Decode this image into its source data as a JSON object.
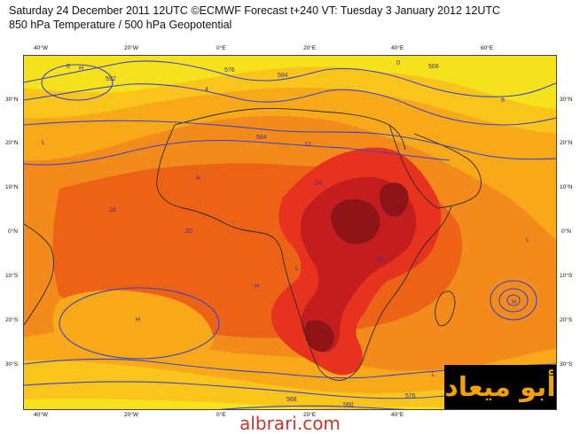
{
  "header": {
    "line1": "Saturday 24 December 2011 12UTC ©ECMWF Forecast t+240 VT: Tuesday 3 January 2012 12UTC",
    "line2": "850 hPa Temperature / 500 hPa Geopotential"
  },
  "axes": {
    "lon_labels": [
      "40°W",
      "20°W",
      "0°E",
      "20°E",
      "40°E",
      "60°E"
    ],
    "lat_labels": [
      "30°N",
      "20°N",
      "10°N",
      "0°N",
      "10°S",
      "20°S",
      "30°S"
    ]
  },
  "palette": {
    "level_0_4": "#f6e21c",
    "level_4_8": "#f9c51c",
    "level_8_12": "#f8a91a",
    "level_12_16": "#f28b1c",
    "level_16_20": "#ec6317",
    "level_20_24": "#e6321f",
    "level_24_28": "#c41d20",
    "level_28_32": "#8e1418",
    "contour": "#3c43c6",
    "coast": "#2a2a2a"
  },
  "contour_labels": [
    "6",
    "592",
    "576",
    "584",
    "4",
    "0",
    "568",
    "8",
    "12",
    "16",
    "20",
    "24",
    "28",
    "584",
    "576",
    "568",
    "560"
  ],
  "center_markers": [
    "H",
    "L"
  ],
  "watermark": {
    "text": "أبو ميعاد"
  },
  "footer": {
    "site": "albrari.com"
  }
}
